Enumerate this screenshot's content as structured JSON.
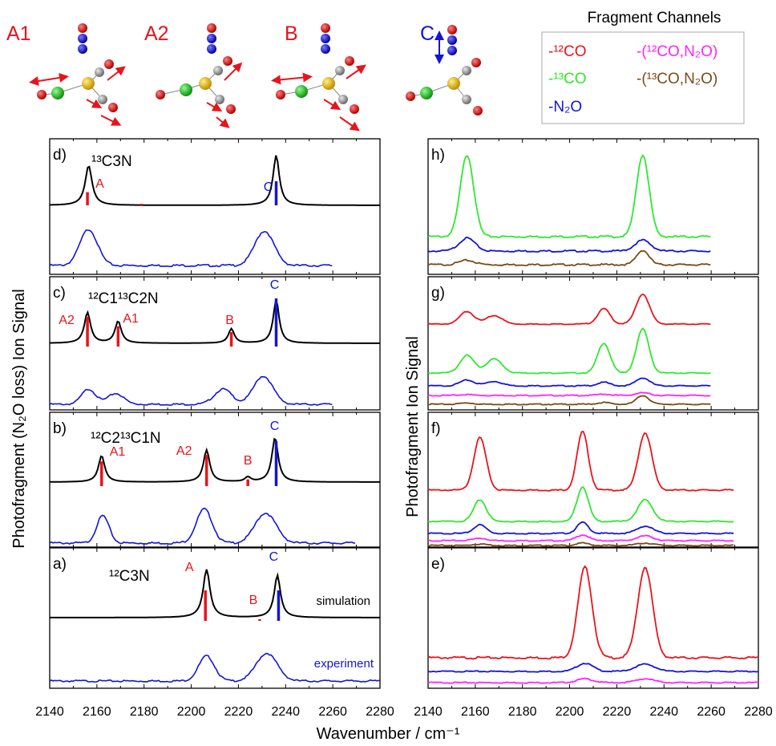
{
  "figure": {
    "y_axis_left": "Photofragment (N₂O loss) Ion Signal",
    "y_axis_right": "Photofragment Ion Signal",
    "x_axis": "Wavenumber / cm⁻¹"
  },
  "legend": {
    "title": "Fragment Channels",
    "entries": [
      {
        "label": "-¹²CO",
        "color": "#e8141c"
      },
      {
        "label": "-(¹²CO,N₂O)",
        "color": "#ff22ff"
      },
      {
        "label": "-¹³CO",
        "color": "#2ee82e"
      },
      {
        "label": "-(¹³CO,N₂O)",
        "color": "#7a4a16"
      },
      {
        "label": "-N₂O",
        "color": "#1414d8"
      }
    ]
  },
  "modes": [
    {
      "label": "A1",
      "color": "#e8141c"
    },
    {
      "label": "A2",
      "color": "#e8141c"
    },
    {
      "label": "B",
      "color": "#e8141c"
    },
    {
      "label": "C",
      "color": "#1414d8"
    }
  ],
  "annotations": {
    "simulation": "simulation",
    "experiment": "experiment"
  },
  "colors": {
    "co12": "#e8141c",
    "co13": "#2ee82e",
    "n2o": "#1414d8",
    "co12n2o": "#ff22ff",
    "co13n2o": "#7a4a16",
    "sim": "#000000",
    "stick_c": "#1414d8"
  },
  "chart_data": [
    {
      "type": "line",
      "panel": "a)",
      "isotopologue": "¹²C3N",
      "xlim": [
        2140,
        2280
      ],
      "xticks": [
        2140,
        2160,
        2180,
        2200,
        2220,
        2240,
        2260,
        2280
      ],
      "sticks": [
        {
          "label": "A",
          "x": 2206,
          "intensity": 1.0,
          "color": "#e8141c"
        },
        {
          "label": "B",
          "x": 2229,
          "intensity": 0.05,
          "color": "#e8141c"
        },
        {
          "label": "C",
          "x": 2237,
          "intensity": 1.0,
          "color": "#1414d8"
        }
      ],
      "simulation_peaks": [
        [
          2206.5,
          1.0,
          3.5
        ],
        [
          2236.5,
          0.88,
          3.2
        ]
      ],
      "experiment_peaks": [
        [
          2206.5,
          0.65,
          4.5
        ],
        [
          2232,
          0.72,
          6
        ]
      ],
      "experiment_range": [
        2140,
        2280
      ]
    },
    {
      "type": "line",
      "panel": "b)",
      "isotopologue": "¹²C2¹³C1N",
      "xlim": [
        2140,
        2280
      ],
      "xticks": [
        2140,
        2160,
        2180,
        2200,
        2220,
        2240,
        2260,
        2280
      ],
      "sticks": [
        {
          "label": "A1",
          "x": 2162,
          "intensity": 0.55,
          "color": "#e8141c"
        },
        {
          "label": "A2",
          "x": 2206.5,
          "intensity": 0.7,
          "color": "#e8141c"
        },
        {
          "label": "B",
          "x": 2224,
          "intensity": 0.15,
          "color": "#e8141c"
        },
        {
          "label": "C",
          "x": 2236,
          "intensity": 1.0,
          "color": "#1414d8"
        }
      ],
      "simulation_peaks": [
        [
          2162,
          0.58,
          3.2
        ],
        [
          2206.5,
          0.7,
          3.2
        ],
        [
          2224,
          0.1,
          3
        ],
        [
          2235.5,
          0.97,
          3.2
        ]
      ],
      "experiment_peaks": [
        [
          2162.5,
          0.62,
          3.5
        ],
        [
          2205.5,
          0.77,
          4.5
        ],
        [
          2231.5,
          0.68,
          6
        ]
      ],
      "experiment_range": [
        2140,
        2270
      ]
    },
    {
      "type": "line",
      "panel": "c)",
      "isotopologue": "¹²C1¹³C2N",
      "xlim": [
        2140,
        2280
      ],
      "xticks": [
        2140,
        2160,
        2180,
        2200,
        2220,
        2240,
        2260,
        2280
      ],
      "sticks": [
        {
          "label": "A2",
          "x": 2156,
          "intensity": 0.62,
          "color": "#e8141c"
        },
        {
          "label": "A1",
          "x": 2169,
          "intensity": 0.42,
          "color": "#e8141c"
        },
        {
          "label": "B",
          "x": 2217,
          "intensity": 0.3,
          "color": "#e8141c"
        },
        {
          "label": "C",
          "x": 2236,
          "intensity": 1.0,
          "color": "#1414d8"
        }
      ],
      "simulation_peaks": [
        [
          2156,
          0.66,
          3.2
        ],
        [
          2169,
          0.47,
          3.2
        ],
        [
          2217,
          0.31,
          3
        ],
        [
          2236,
          0.94,
          3
        ]
      ],
      "experiment_peaks": [
        [
          2156.5,
          0.42,
          4
        ],
        [
          2168,
          0.3,
          4.5
        ],
        [
          2213.5,
          0.42,
          5
        ],
        [
          2230.5,
          0.78,
          5.5
        ]
      ],
      "experiment_range": [
        2140,
        2260
      ]
    },
    {
      "type": "line",
      "panel": "d)",
      "isotopologue": "¹³C3N",
      "xlim": [
        2140,
        2280
      ],
      "xticks": [
        2140,
        2160,
        2180,
        2200,
        2220,
        2240,
        2260,
        2280
      ],
      "sticks": [
        {
          "label": "A",
          "x": 2156,
          "intensity": 0.55,
          "color": "#e8141c"
        },
        {
          "label": "",
          "x": 2179,
          "intensity": 0.05,
          "color": "#e8141c"
        },
        {
          "label": "C",
          "x": 2236,
          "intensity": 1.0,
          "color": "#1414d8"
        }
      ],
      "simulation_peaks": [
        [
          2156.5,
          0.62,
          3.5
        ],
        [
          2236,
          0.78,
          3.2
        ]
      ],
      "experiment_peaks": [
        [
          2156.5,
          0.82,
          5
        ],
        [
          2231,
          0.78,
          5.5
        ]
      ],
      "experiment_range": [
        2140,
        2260
      ]
    },
    {
      "type": "line",
      "panel": "e)",
      "xlim": [
        2140,
        2280
      ],
      "xticks": [
        2140,
        2160,
        2180,
        2200,
        2220,
        2240,
        2260,
        2280
      ],
      "series": [
        {
          "name": "-¹²CO",
          "color": "#e8141c",
          "peaks": [
            [
              2206.5,
              1.0,
              4
            ],
            [
              2232,
              1.0,
              4.2
            ]
          ]
        },
        {
          "name": "-N₂O",
          "color": "#1414d8",
          "peaks": [
            [
              2206.5,
              0.17,
              4.5
            ],
            [
              2232,
              0.15,
              5.5
            ]
          ]
        },
        {
          "name": "-(¹²CO,N₂O)",
          "color": "#ff22ff",
          "peaks": [
            [
              2206.5,
              0.08,
              4.5
            ],
            [
              2232,
              0.08,
              5
            ]
          ]
        }
      ],
      "range": [
        2140,
        2280
      ]
    },
    {
      "type": "line",
      "panel": "f)",
      "xlim": [
        2140,
        2280
      ],
      "xticks": [
        2140,
        2160,
        2180,
        2200,
        2220,
        2240,
        2260,
        2280
      ],
      "series": [
        {
          "name": "-¹²CO",
          "color": "#e8141c",
          "peaks": [
            [
              2162,
              0.9,
              3.5
            ],
            [
              2205.5,
              1.0,
              3.2
            ],
            [
              2232,
              0.98,
              3.8
            ]
          ]
        },
        {
          "name": "-¹³CO",
          "color": "#2ee82e",
          "peaks": [
            [
              2162,
              0.45,
              3.5
            ],
            [
              2205.5,
              0.72,
              3.2
            ],
            [
              2232,
              0.45,
              4.2
            ]
          ]
        },
        {
          "name": "-N₂O",
          "color": "#1414d8",
          "peaks": [
            [
              2162,
              0.18,
              3.5
            ],
            [
              2205.5,
              0.23,
              3.2
            ],
            [
              2232,
              0.15,
              4.5
            ]
          ]
        },
        {
          "name": "-(¹²CO,N₂O)",
          "color": "#ff22ff",
          "peaks": [
            [
              2162,
              0.05,
              4
            ],
            [
              2205.5,
              0.12,
              3.5
            ],
            [
              2232,
              0.1,
              4.5
            ]
          ]
        },
        {
          "name": "-(¹³CO,N₂O)",
          "color": "#7a4a16",
          "peaks": [
            [
              2162,
              0.03,
              4
            ],
            [
              2205.5,
              0.05,
              3.5
            ],
            [
              2232,
              0.05,
              4.5
            ]
          ]
        }
      ],
      "range": [
        2140,
        2270
      ]
    },
    {
      "type": "line",
      "panel": "g)",
      "xlim": [
        2140,
        2280
      ],
      "xticks": [
        2140,
        2160,
        2180,
        2200,
        2220,
        2240,
        2260,
        2280
      ],
      "series": [
        {
          "name": "-¹²CO",
          "color": "#e8141c",
          "peaks": [
            [
              2156.5,
              0.33,
              4
            ],
            [
              2168,
              0.22,
              4.5
            ],
            [
              2214.5,
              0.4,
              3.5
            ],
            [
              2231,
              0.78,
              3.8
            ]
          ]
        },
        {
          "name": "-¹³CO",
          "color": "#2ee82e",
          "peaks": [
            [
              2156.5,
              0.4,
              4
            ],
            [
              2168,
              0.32,
              4.5
            ],
            [
              2214.5,
              0.68,
              3.5
            ],
            [
              2231,
              1.0,
              3.5
            ]
          ]
        },
        {
          "name": "-N₂O",
          "color": "#1414d8",
          "peaks": [
            [
              2156.5,
              0.13,
              4
            ],
            [
              2168,
              0.1,
              4.5
            ],
            [
              2214.5,
              0.08,
              3.5
            ],
            [
              2231,
              0.18,
              3.8
            ]
          ]
        },
        {
          "name": "-(¹²CO,N₂O)",
          "color": "#ff22ff",
          "peaks": [
            [
              2156.5,
              0.02,
              4
            ],
            [
              2214.5,
              0.03,
              3.5
            ],
            [
              2231,
              0.06,
              4
            ]
          ]
        },
        {
          "name": "-(¹³CO,N₂O)",
          "color": "#7a4a16",
          "peaks": [
            [
              2156.5,
              0.03,
              4
            ],
            [
              2214.5,
              0.04,
              3.5
            ],
            [
              2231,
              0.2,
              3.5
            ]
          ]
        }
      ],
      "range": [
        2140,
        2260
      ]
    },
    {
      "type": "line",
      "panel": "h)",
      "xlim": [
        2140,
        2280
      ],
      "xticks": [
        2140,
        2160,
        2180,
        2200,
        2220,
        2240,
        2260,
        2280
      ],
      "series": [
        {
          "name": "-¹³CO",
          "color": "#2ee82e",
          "peaks": [
            [
              2156.5,
              1.0,
              3.8
            ],
            [
              2231,
              1.0,
              3.6
            ]
          ]
        },
        {
          "name": "-N₂O",
          "color": "#1414d8",
          "peaks": [
            [
              2156.5,
              0.18,
              4.5
            ],
            [
              2231,
              0.15,
              4.5
            ]
          ]
        },
        {
          "name": "-(¹³CO,N₂O)",
          "color": "#7a4a16",
          "peaks": [
            [
              2156.5,
              0.06,
              4.5
            ],
            [
              2231,
              0.2,
              3.5
            ]
          ]
        }
      ],
      "range": [
        2140,
        2260
      ]
    }
  ]
}
